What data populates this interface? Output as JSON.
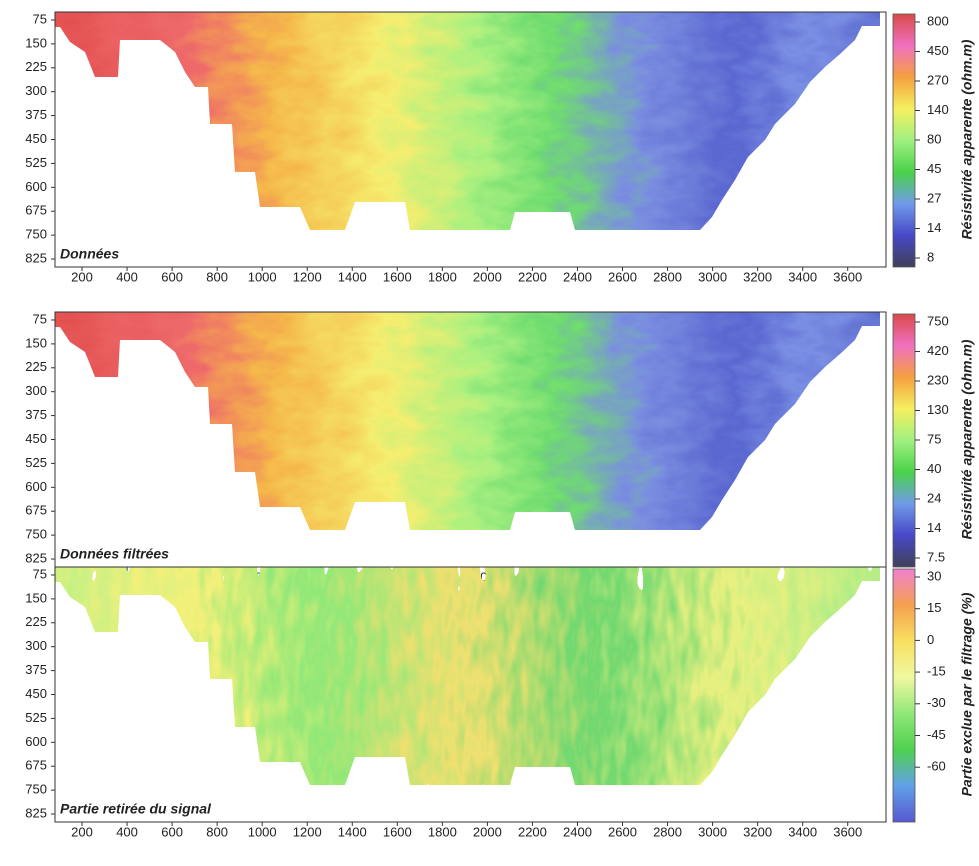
{
  "chart_data": [
    {
      "type": "heatmap",
      "label": "Données",
      "xlim": [
        80,
        3770
      ],
      "xticks": [
        200,
        400,
        600,
        800,
        1000,
        1200,
        1400,
        1600,
        1800,
        2000,
        2200,
        2400,
        2600,
        2800,
        3000,
        3200,
        3400,
        3600
      ],
      "ylim": [
        50,
        850
      ],
      "y_inverted": true,
      "yticks": [
        75,
        150,
        225,
        300,
        375,
        450,
        525,
        600,
        675,
        750,
        825
      ],
      "colorbar": {
        "title": "Résistivité apparente (ohm.m)",
        "ticks": [
          800,
          450,
          270,
          140,
          80,
          45,
          27,
          14,
          8
        ],
        "colors": [
          "#d94a4a",
          "#f070c0",
          "#f5a040",
          "#f5f060",
          "#a0f080",
          "#4ad24a",
          "#6f9ae8",
          "#4848c8",
          "#404058"
        ]
      }
    },
    {
      "type": "heatmap",
      "label": "Données filtrées",
      "xlim": [
        80,
        3770
      ],
      "xticks": [
        200,
        400,
        600,
        800,
        1000,
        1200,
        1400,
        1600,
        1800,
        2000,
        2200,
        2400,
        2600,
        2800,
        3000,
        3200,
        3400,
        3600
      ],
      "ylim": [
        50,
        850
      ],
      "y_inverted": true,
      "yticks": [
        75,
        150,
        225,
        300,
        375,
        450,
        525,
        600,
        675,
        750,
        825
      ],
      "colorbar": {
        "title": "Résistivité apparente (ohm.m)",
        "ticks": [
          750,
          420,
          230,
          130,
          75,
          40,
          24,
          14,
          7.5
        ],
        "colors": [
          "#d94a4a",
          "#f070c0",
          "#f5a040",
          "#f5f060",
          "#a0f080",
          "#4ad24a",
          "#6f9ae8",
          "#4848c8",
          "#404058"
        ]
      }
    },
    {
      "type": "heatmap",
      "label": "Partie retirée du signal",
      "xlim": [
        80,
        3770
      ],
      "xticks": [
        200,
        400,
        600,
        800,
        1000,
        1200,
        1400,
        1600,
        1800,
        2000,
        2200,
        2400,
        2600,
        2800,
        3000,
        3200,
        3400,
        3600
      ],
      "ylim": [
        50,
        850
      ],
      "y_inverted": true,
      "yticks": [
        75,
        150,
        225,
        300,
        375,
        450,
        525,
        600,
        675,
        750,
        825
      ],
      "colorbar": {
        "title": "Partie exclue par le filtrage (%)",
        "ticks": [
          30,
          15,
          0,
          -15,
          -30,
          -45,
          -60
        ],
        "colors": [
          "#f080d0",
          "#f5a050",
          "#f8e060",
          "#f0f8a0",
          "#90e878",
          "#50d050",
          "#60a0e8",
          "#5858d0"
        ]
      }
    }
  ]
}
